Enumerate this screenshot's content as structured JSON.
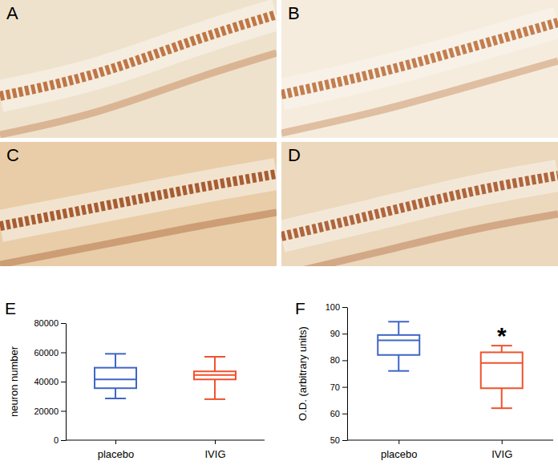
{
  "image_panels": {
    "labels": [
      "A",
      "B",
      "C",
      "D"
    ]
  },
  "chart_data": [
    {
      "type": "box",
      "panel": "E",
      "y_label": "neuron number",
      "categories": [
        "placebo",
        "IVIG"
      ],
      "values": [
        {
          "min": 28500,
          "q1": 35500,
          "median": 41500,
          "q3": 49500,
          "max": 59000
        },
        {
          "min": 28000,
          "q1": 41500,
          "median": 44500,
          "q3": 47000,
          "max": 57000
        }
      ],
      "colors": [
        "#3f66c6",
        "#f0522c"
      ],
      "ylim": [
        0,
        80000
      ],
      "yticks": [
        0,
        20000,
        40000,
        60000,
        80000
      ],
      "grid": false
    },
    {
      "type": "box",
      "panel": "F",
      "y_label": "O.D. (arbitrary units)",
      "categories": [
        "placebo",
        "IVIG"
      ],
      "values": [
        {
          "min": 76,
          "q1": 82,
          "median": 87.5,
          "q3": 89.5,
          "max": 94.5
        },
        {
          "min": 62,
          "q1": 69.5,
          "median": 79,
          "q3": 83,
          "max": 85.5
        }
      ],
      "colors": [
        "#3f66c6",
        "#f0522c"
      ],
      "ylim": [
        50,
        100
      ],
      "yticks": [
        50,
        60,
        70,
        80,
        90,
        100
      ],
      "grid": false,
      "annotations": [
        {
          "text": "*",
          "category": "IVIG"
        }
      ]
    }
  ]
}
